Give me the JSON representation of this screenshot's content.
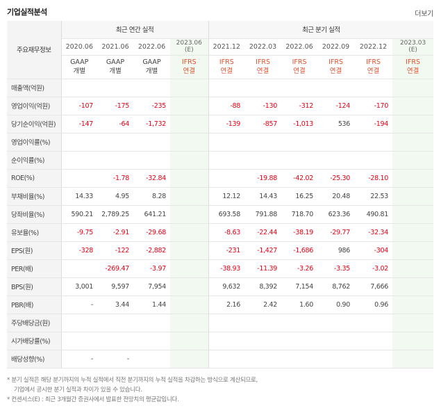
{
  "header": {
    "title": "기업실적분석",
    "more": "더보기"
  },
  "table": {
    "corner_label": "주요재무정보",
    "annual_group": "최근 연간 실적",
    "quarter_group": "최근 분기 실적",
    "periods": [
      "2020.06",
      "2021.06",
      "2022.06",
      "2023.06\n(E)",
      "2021.12",
      "2022.03",
      "2022.06",
      "2022.09",
      "2022.12",
      "2023.03\n(E)"
    ],
    "types": [
      "GAAP\n개별",
      "GAAP\n개별",
      "GAAP\n개별",
      "IFRS\n연결",
      "IFRS\n연결",
      "IFRS\n연결",
      "IFRS\n연결",
      "IFRS\n연결",
      "IFRS\n연결",
      "IFRS\n연결"
    ],
    "rows": [
      {
        "label": "매출액(억원)",
        "values": [
          "",
          "",
          "",
          "",
          "",
          "",
          "",
          "",
          "",
          ""
        ]
      },
      {
        "label": "영업이익(억원)",
        "values": [
          "-107",
          "-175",
          "-235",
          "",
          "-88",
          "-130",
          "-312",
          "-124",
          "-170",
          ""
        ]
      },
      {
        "label": "당기순이익(억원)",
        "values": [
          "-147",
          "-64",
          "-1,732",
          "",
          "-139",
          "-857",
          "-1,013",
          "536",
          "-194",
          ""
        ]
      },
      {
        "label": "영업이익률(%)",
        "values": [
          "",
          "",
          "",
          "",
          "",
          "",
          "",
          "",
          "",
          ""
        ]
      },
      {
        "label": "순이익률(%)",
        "values": [
          "",
          "",
          "",
          "",
          "",
          "",
          "",
          "",
          "",
          ""
        ]
      },
      {
        "label": "ROE(%)",
        "values": [
          "",
          "-1.78",
          "-32.84",
          "",
          "",
          "-19.88",
          "-42.02",
          "-25.30",
          "-28.10",
          ""
        ]
      },
      {
        "label": "부채비율(%)",
        "values": [
          "14.33",
          "4.95",
          "8.28",
          "",
          "12.12",
          "14.43",
          "16.25",
          "20.48",
          "22.53",
          ""
        ]
      },
      {
        "label": "당좌비율(%)",
        "values": [
          "590.21",
          "2,789.25",
          "641.21",
          "",
          "693.58",
          "791.88",
          "718.70",
          "623.36",
          "490.81",
          ""
        ]
      },
      {
        "label": "유보율(%)",
        "values": [
          "-9.75",
          "-2.91",
          "-29.68",
          "",
          "-8.63",
          "-22.44",
          "-38.19",
          "-29.77",
          "-32.34",
          ""
        ]
      },
      {
        "label": "EPS(원)",
        "values": [
          "-328",
          "-122",
          "-2,882",
          "",
          "-231",
          "-1,427",
          "-1,686",
          "986",
          "-304",
          ""
        ]
      },
      {
        "label": "PER(배)",
        "values": [
          "",
          "-269.47",
          "-3.97",
          "",
          "-38.93",
          "-11.39",
          "-3.26",
          "-3.35",
          "-3.02",
          ""
        ]
      },
      {
        "label": "BPS(원)",
        "values": [
          "3,001",
          "9,597",
          "7,954",
          "",
          "9,632",
          "8,392",
          "7,154",
          "8,762",
          "7,666",
          ""
        ]
      },
      {
        "label": "PBR(배)",
        "values": [
          "-",
          "3.44",
          "1.44",
          "",
          "2.16",
          "2.42",
          "1.60",
          "0.90",
          "0.96",
          ""
        ]
      },
      {
        "label": "주당배당금(원)",
        "values": [
          "",
          "",
          "",
          "",
          "",
          "",
          "",
          "",
          "",
          ""
        ]
      },
      {
        "label": "시가배당률(%)",
        "values": [
          "",
          "",
          "",
          "",
          "",
          "",
          "",
          "",
          "",
          ""
        ]
      },
      {
        "label": "배당성향(%)",
        "values": [
          "-",
          "-",
          "",
          "",
          "",
          "",
          "",
          "",
          "",
          ""
        ]
      }
    ]
  },
  "notes": {
    "line1": "* 분기 실적은 해당 분기까지의 누적 실적에서 직전 분기까지의 누적 실적을 차감하는 방식으로 계산되므로,",
    "line2": "기업에서 공시한 분기 실적과 차이가 있을 수 있습니다.",
    "line3": "* 컨센서스(E) : 최근 3개월간 증권사에서 발표한 전망치의 평균값입니다."
  },
  "colors": {
    "negative": "#e60012",
    "ifrs": "#e5512f",
    "estimate_bg": "#f2f9f0",
    "header_bg": "#f4f4f4"
  }
}
